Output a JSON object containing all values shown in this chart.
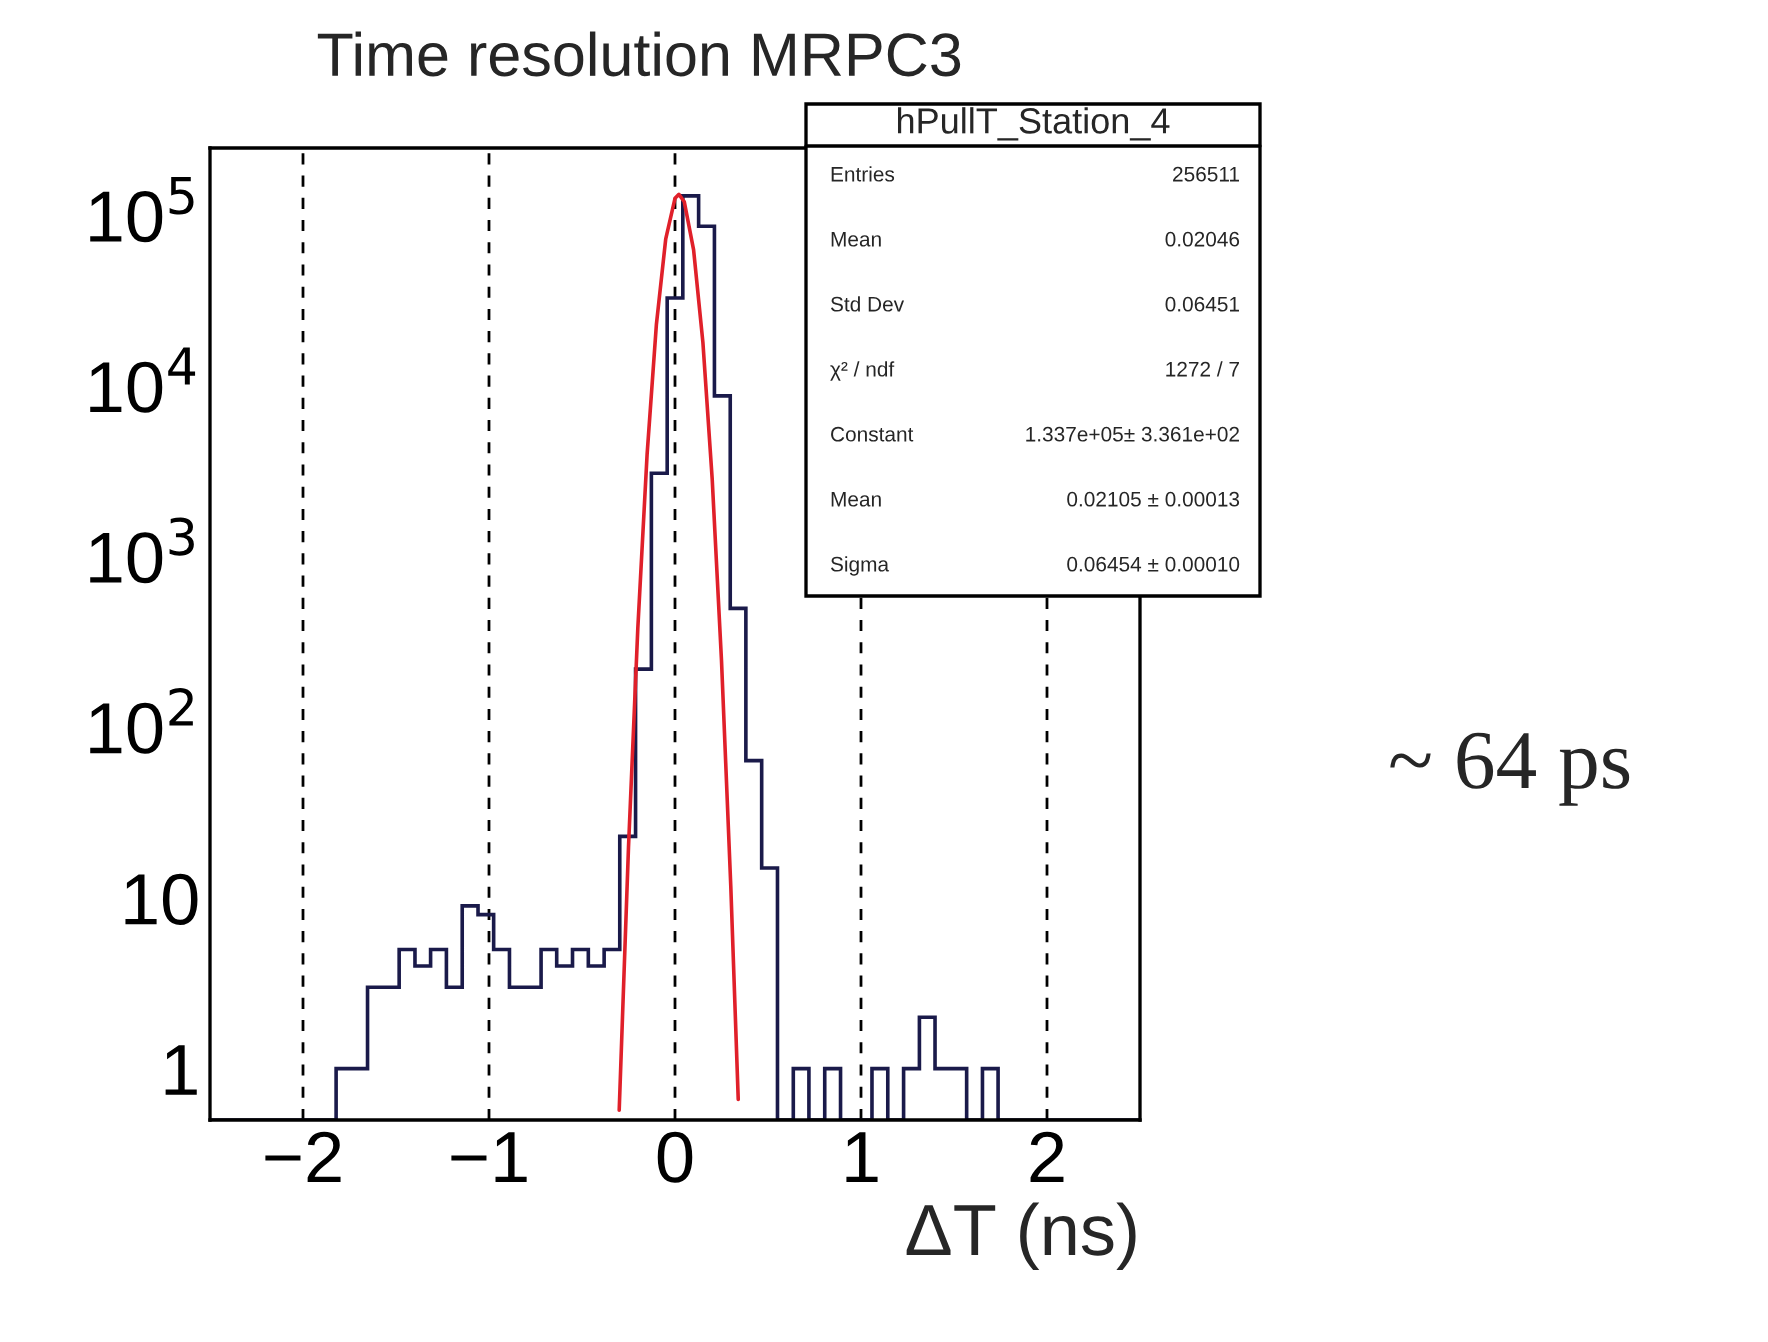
{
  "chart_data": {
    "type": "histogram",
    "title": "Time resolution MRPC3",
    "xlabel": "ΔT (ns)",
    "bins": [
      -2.5,
      -2.415,
      -2.331,
      -2.246,
      -2.161,
      -2.076,
      -1.992,
      -1.907,
      -1.822,
      -1.737,
      -1.653,
      -1.568,
      -1.483,
      -1.398,
      -1.314,
      -1.229,
      -1.144,
      -1.059,
      -0.975,
      -0.89,
      -0.805,
      -0.72,
      -0.636,
      -0.551,
      -0.466,
      -0.381,
      -0.297,
      -0.212,
      -0.127,
      -0.042,
      0.042,
      0.127,
      0.212,
      0.297,
      0.381,
      0.466,
      0.551,
      0.636,
      0.72,
      0.805,
      0.89,
      0.975,
      1.059,
      1.144,
      1.229,
      1.314,
      1.398,
      1.483,
      1.568,
      1.653,
      1.737,
      1.822,
      1.907,
      1.992,
      2.076,
      2.161,
      2.246,
      2.331,
      2.415,
      2.5
    ],
    "values": [
      null,
      null,
      null,
      null,
      null,
      null,
      null,
      null,
      1,
      1,
      3,
      3,
      5,
      4,
      5,
      3,
      9,
      8,
      5,
      3,
      3,
      5,
      4,
      5,
      4,
      5,
      23,
      220,
      3100,
      33000,
      131000,
      87000,
      8800,
      500,
      64,
      15,
      null,
      1,
      null,
      1,
      null,
      null,
      1,
      null,
      1,
      2,
      1,
      1,
      null,
      1,
      null,
      null,
      null,
      null,
      null,
      null,
      null,
      null,
      null
    ],
    "color": "#1a1a4a",
    "series": [
      {
        "type": "line",
        "color": "#e0202a",
        "x": [
          -0.3,
          -0.25,
          -0.2,
          -0.15,
          -0.1,
          -0.05,
          0.0,
          0.021,
          0.05,
          0.1,
          0.15,
          0.2,
          0.25,
          0.3,
          0.34
        ],
        "values": [
          0.57,
          19.9,
          380,
          4000,
          23080,
          73000,
          126800,
          133700,
          120900,
          63200,
          18130,
          2857,
          247,
          11.7,
          0.66
        ]
      }
    ],
    "log": true,
    "xlim": [
      -2.5,
      2.5
    ],
    "ylim": [
      0.5,
      250000
    ],
    "xticks": [
      {
        "value": -2,
        "label": "−2"
      },
      {
        "value": -1,
        "label": "−1"
      },
      0,
      1,
      2
    ],
    "yticks": [
      1,
      10,
      {
        "value": 100,
        "label": "10$^{2}$"
      },
      {
        "value": 1000,
        "label": "10$^{3}$"
      },
      {
        "value": 10000,
        "label": "10$^{4}$"
      },
      {
        "value": 100000,
        "label": "10$^{5}$"
      }
    ],
    "grid": "x",
    "annotations": [
      "hPullT_Station_4",
      "Entries",
      "256511",
      "Mean",
      "0.02046",
      "Std Dev",
      "0.06451",
      "χ² / ndf",
      "1272 / 7",
      "Constant",
      "1.337e+05± 3.361e+02",
      "Mean",
      "0.02105 ± 0.00013",
      "Sigma",
      "0.06454 ± 0.00010",
      "~ 64 ps"
    ]
  }
}
